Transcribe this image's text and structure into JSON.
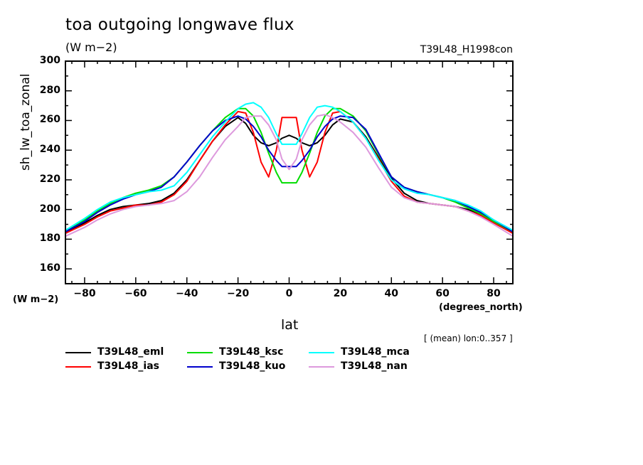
{
  "chart_data": {
    "type": "line",
    "title": "toa outgoing longwave flux",
    "title_units": "(W m−2)",
    "run_label": "T39L48_H1998con",
    "ylabel": "sh_lw_toa_zonal",
    "yunits": "(W m−2)",
    "xlabel": "lat",
    "xunits": "(degrees_north)",
    "annotation": "[ (mean) lon:0..357 ]",
    "xlim": [
      -87.5,
      87.5
    ],
    "ylim": [
      150,
      300
    ],
    "xticks": [
      -80,
      -60,
      -40,
      -20,
      0,
      20,
      40,
      60,
      80
    ],
    "xtick_labels": [
      "−80",
      "−60",
      "−40",
      "−20",
      "0",
      "20",
      "40",
      "60",
      "80"
    ],
    "yticks": [
      160,
      180,
      200,
      220,
      240,
      260,
      280,
      300
    ],
    "ytick_labels": [
      "160",
      "180",
      "200",
      "220",
      "240",
      "260",
      "280",
      "300"
    ],
    "grid": false,
    "legend_position": "bottom",
    "x": [
      -87.5,
      -80,
      -75,
      -70,
      -65,
      -60,
      -55,
      -50,
      -45,
      -40,
      -35,
      -30,
      -25,
      -20,
      -17,
      -14,
      -11,
      -8,
      -5,
      -2.8,
      0,
      2.8,
      5,
      8,
      11,
      14,
      17,
      20,
      25,
      30,
      35,
      40,
      45,
      50,
      55,
      60,
      65,
      70,
      75,
      80,
      87.5
    ],
    "series": [
      {
        "name": "T39L48_eml",
        "color": "#000000",
        "values": [
          184,
          191,
          196,
          200,
          202,
          203,
          204,
          206,
          211,
          220,
          233,
          246,
          256,
          262,
          258,
          250,
          245,
          243,
          245,
          248,
          250,
          248,
          245,
          243,
          245,
          250,
          257,
          261,
          259,
          249,
          235,
          221,
          211,
          206,
          204,
          203,
          202,
          200,
          197,
          192,
          184
        ]
      },
      {
        "name": "T39L48_ias",
        "color": "#ff0000",
        "values": [
          184,
          190,
          195,
          199,
          201,
          203,
          203,
          205,
          210,
          219,
          233,
          246,
          257,
          266,
          265,
          252,
          232,
          222,
          240,
          262,
          262,
          262,
          240,
          222,
          232,
          252,
          265,
          266,
          259,
          248,
          234,
          219,
          209,
          205,
          204,
          203,
          202,
          199,
          196,
          191,
          184
        ]
      },
      {
        "name": "T39L48_ksc",
        "color": "#00dd00",
        "values": [
          185,
          193,
          199,
          204,
          208,
          211,
          213,
          216,
          222,
          232,
          243,
          253,
          262,
          268,
          268,
          263,
          252,
          238,
          225,
          218,
          218,
          218,
          225,
          238,
          252,
          263,
          268,
          268,
          263,
          253,
          237,
          222,
          215,
          212,
          210,
          208,
          205,
          201,
          197,
          192,
          185
        ]
      },
      {
        "name": "T39L48_kuo",
        "color": "#0000cc",
        "values": [
          185,
          192,
          198,
          203,
          207,
          210,
          212,
          215,
          222,
          232,
          243,
          253,
          260,
          263,
          261,
          256,
          249,
          240,
          233,
          229,
          229,
          229,
          233,
          240,
          249,
          256,
          261,
          263,
          262,
          254,
          238,
          222,
          215,
          212,
          210,
          208,
          206,
          202,
          198,
          193,
          185
        ]
      },
      {
        "name": "T39L48_mca",
        "color": "#00ffff",
        "values": [
          186,
          194,
          200,
          205,
          208,
          210,
          212,
          213,
          216,
          225,
          237,
          249,
          259,
          268,
          271,
          272,
          269,
          262,
          251,
          244,
          244,
          244,
          251,
          262,
          269,
          270,
          269,
          266,
          259,
          248,
          233,
          220,
          214,
          211,
          210,
          208,
          206,
          203,
          199,
          193,
          186
        ]
      },
      {
        "name": "T39L48_nan",
        "color": "#dd99dd",
        "values": [
          182,
          188,
          193,
          197,
          200,
          202,
          203,
          204,
          206,
          212,
          222,
          235,
          247,
          256,
          262,
          263,
          263,
          257,
          247,
          234,
          227,
          234,
          247,
          257,
          263,
          264,
          262,
          259,
          252,
          242,
          228,
          215,
          208,
          205,
          204,
          203,
          202,
          199,
          195,
          190,
          182
        ]
      }
    ]
  }
}
